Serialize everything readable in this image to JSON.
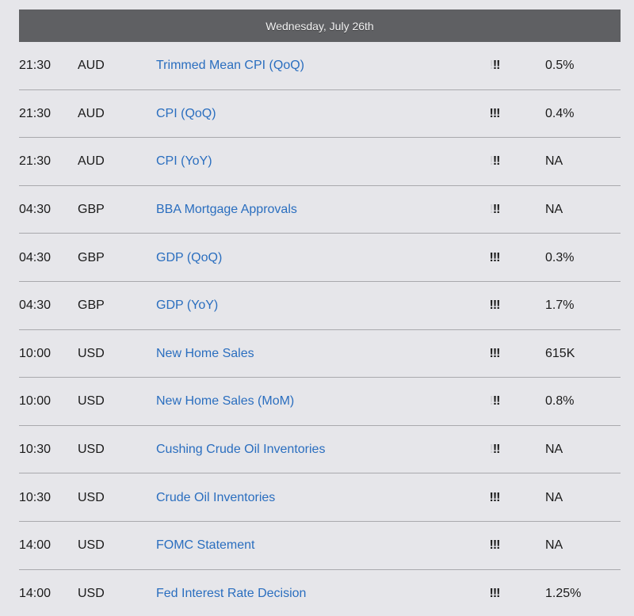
{
  "header": {
    "date": "Wednesday, July 26th"
  },
  "events": [
    {
      "time": "21:30",
      "currency": "AUD",
      "event": "Trimmed Mean CPI (QoQ)",
      "importance": 2,
      "value": "0.5%"
    },
    {
      "time": "21:30",
      "currency": "AUD",
      "event": "CPI (QoQ)",
      "importance": 3,
      "value": "0.4%"
    },
    {
      "time": "21:30",
      "currency": "AUD",
      "event": "CPI (YoY)",
      "importance": 2,
      "value": "NA"
    },
    {
      "time": "04:30",
      "currency": "GBP",
      "event": "BBA Mortgage Approvals",
      "importance": 2,
      "value": "NA"
    },
    {
      "time": "04:30",
      "currency": "GBP",
      "event": "GDP (QoQ)",
      "importance": 3,
      "value": "0.3%"
    },
    {
      "time": "04:30",
      "currency": "GBP",
      "event": "GDP (YoY)",
      "importance": 3,
      "value": "1.7%"
    },
    {
      "time": "10:00",
      "currency": "USD",
      "event": "New Home Sales",
      "importance": 3,
      "value": "615K"
    },
    {
      "time": "10:00",
      "currency": "USD",
      "event": "New Home Sales (MoM)",
      "importance": 2,
      "value": "0.8%"
    },
    {
      "time": "10:30",
      "currency": "USD",
      "event": "Cushing Crude Oil Inventories",
      "importance": 2,
      "value": "NA"
    },
    {
      "time": "10:30",
      "currency": "USD",
      "event": "Crude Oil Inventories",
      "importance": 3,
      "value": "NA"
    },
    {
      "time": "14:00",
      "currency": "USD",
      "event": "FOMC Statement",
      "importance": 3,
      "value": "NA"
    },
    {
      "time": "14:00",
      "currency": "USD",
      "event": "Fed Interest Rate Decision",
      "importance": 3,
      "value": "1.25%"
    }
  ]
}
